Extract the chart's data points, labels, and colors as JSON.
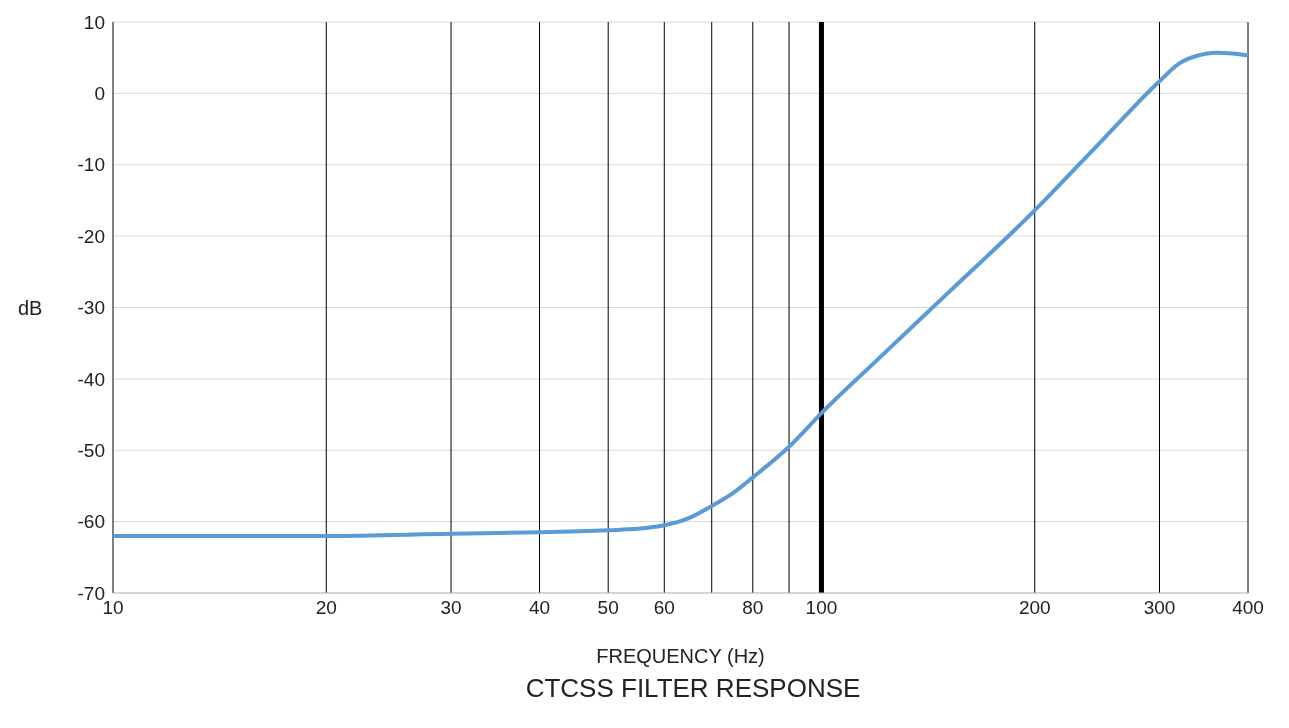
{
  "chart_data": {
    "type": "line",
    "title": "CTCSS FILTER RESPONSE",
    "xlabel": "FREQUENCY (Hz)",
    "ylabel": "dB",
    "x": [
      10,
      20,
      30,
      40,
      50,
      55,
      60,
      65,
      70,
      75,
      80,
      90,
      100,
      120,
      150,
      200,
      250,
      300,
      320,
      340,
      360,
      380,
      400
    ],
    "series": [
      {
        "color": "#5b9bd5",
        "values": [
          -62,
          -62,
          -61.7,
          -61.5,
          -61.2,
          -61,
          -60.5,
          -59.5,
          -57.8,
          -56,
          -53.8,
          -49.5,
          -44.8,
          -37.3,
          -28.2,
          -16.4,
          -6.4,
          1.7,
          4.2,
          5.3,
          5.7,
          5.6,
          5.3
        ]
      }
    ],
    "log": "x",
    "xlim": [
      10,
      400
    ],
    "ylim": [
      -70,
      10
    ],
    "xticks": [
      10,
      20,
      30,
      40,
      50,
      60,
      {
        "value": 70,
        "label": null
      },
      80,
      {
        "value": 90,
        "label": null
      },
      100,
      200,
      300,
      400
    ],
    "yticks": [
      -70,
      -60,
      -50,
      -40,
      -30,
      -20,
      -10,
      0,
      10
    ],
    "grid": true,
    "legend": false,
    "marker": "none",
    "line_style": "solid",
    "ref_lines": [
      {
        "axis": "x",
        "value": 100,
        "color": "#000000"
      }
    ]
  }
}
